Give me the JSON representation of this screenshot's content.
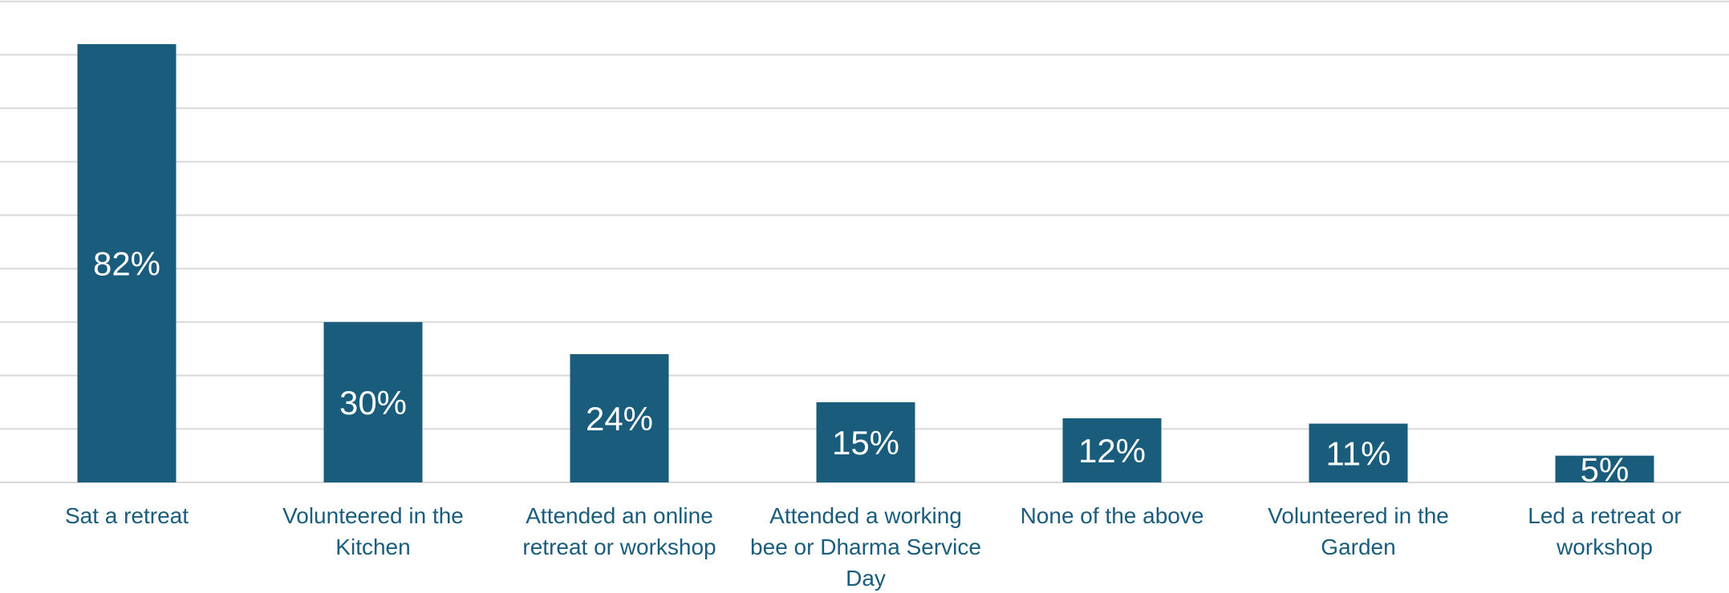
{
  "chart_data": {
    "type": "bar",
    "categories": [
      "Sat a retreat",
      "Volunteered in the Kitchen",
      "Attended an online retreat or workshop",
      "Attended a working bee or Dharma Service Day",
      "None of the above",
      "Volunteered in the Garden",
      "Led a retreat or workshop"
    ],
    "category_lines": [
      [
        "Sat a retreat"
      ],
      [
        "Volunteered in the",
        "Kitchen"
      ],
      [
        "Attended an online",
        "retreat or workshop"
      ],
      [
        "Attended a working",
        "bee or Dharma Service",
        "Day"
      ],
      [
        "None of the above"
      ],
      [
        "Volunteered in the",
        "Garden"
      ],
      [
        "Led a retreat or",
        "workshop"
      ]
    ],
    "values": [
      82,
      30,
      24,
      15,
      12,
      11,
      5
    ],
    "value_labels": [
      "82%",
      "30%",
      "24%",
      "15%",
      "12%",
      "11%",
      "5%"
    ],
    "ylim": [
      0,
      90
    ],
    "grid": true,
    "bar_color": "#1a5c7c",
    "label_color": "#1a5c7c",
    "grid_color": "#d9d9d9"
  }
}
